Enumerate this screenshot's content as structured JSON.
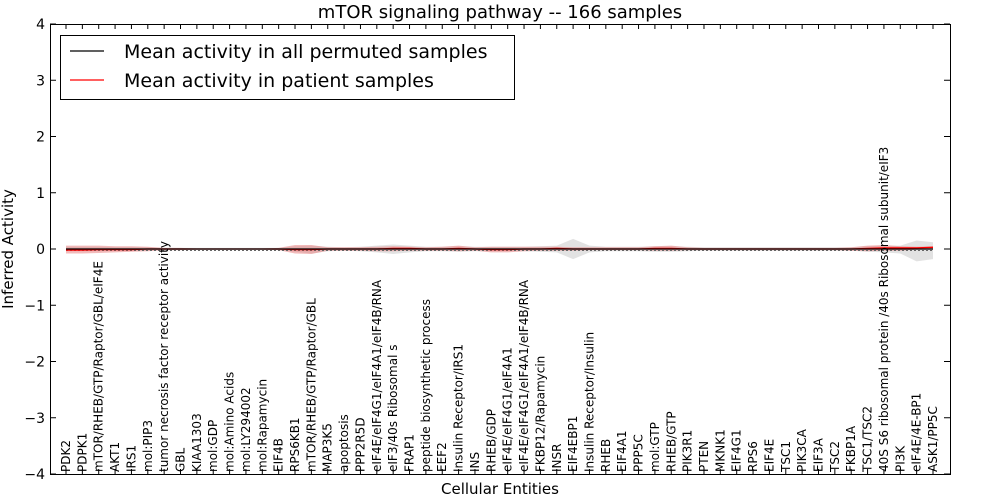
{
  "chart_data": {
    "type": "line",
    "title": "mTOR signaling pathway -- 166 samples",
    "xlabel": "Cellular Entities",
    "ylabel": "Inferred Activity",
    "ylim": [
      -4,
      4
    ],
    "yticks": [
      -4,
      -3,
      -2,
      -1,
      0,
      1,
      2,
      3,
      4
    ],
    "ytick_labels": [
      "−4",
      "−3",
      "−2",
      "−1",
      "0",
      "1",
      "2",
      "3",
      "4"
    ],
    "grid": false,
    "legend_position": "top-left",
    "colors": {
      "permuted": "#000000",
      "patient": "#ff0000",
      "permuted_band": "#bfbfbf",
      "patient_band": "#e87878"
    },
    "categories": [
      "PDK2",
      "PDPK1",
      "mTOR/RHEB/GTP/Raptor/GBL/eIF4E",
      "AKT1",
      "IRS1",
      "mol:PIP3",
      "tumor necrosis factor receptor activity",
      "GBL",
      "KIAA1303",
      "mol:GDP",
      "mol:Amino Acids",
      "mol:LY294002",
      "mol:Rapamycin",
      "EIF4B",
      "RPS6KB1",
      "mTOR/RHEB/GTP/Raptor/GBL",
      "MAP3K5",
      "apoptosis",
      "PPP2R5D",
      "eIF4E/eIF4G1/eIF4A1/eIF4B/RNA",
      "eIF3/40s Ribosomal s",
      "FRAP1",
      "peptide biosynthetic process",
      "EEF2",
      "Insulin Receptor/IRS1",
      "INS",
      "RHEB/GDP",
      "eIF4E/eIF4G1/eIF4A1",
      "eIF4E/eIF4G1/eIF4A1/eIF4B/RNA",
      "FKBP12/Rapamycin",
      "INSR",
      "EIF4EBP1",
      "Insulin Receptor/Insulin",
      "RHEB",
      "EIF4A1",
      "PPP5C",
      "mol:GTP",
      "RHEB/GTP",
      "PIK3R1",
      "PTEN",
      "MKNK1",
      "EIF4G1",
      "RPS6",
      "EIF4E",
      "TSC1",
      "PIK3CA",
      "EIF3A",
      "TSC2",
      "FKBP1A",
      "TSC1/TSC2",
      "40S S6 ribosomal protein /40s Ribosomal subunit/eIF3",
      "PI3K",
      "eIF4E/4E-BP1",
      "ASK1/PP5C"
    ],
    "series": [
      {
        "name": "Mean activity in all permuted samples",
        "values": [
          0.0,
          0.0,
          0.0,
          0.0,
          0.0,
          0.0,
          0.0,
          0.0,
          0.0,
          0.0,
          0.0,
          0.0,
          0.0,
          0.0,
          0.0,
          0.0,
          0.0,
          0.0,
          0.0,
          0.0,
          0.0,
          0.0,
          0.0,
          0.0,
          0.0,
          0.0,
          0.0,
          0.0,
          0.0,
          0.0,
          0.0,
          0.0,
          0.0,
          0.0,
          0.0,
          0.0,
          0.0,
          0.0,
          0.0,
          0.0,
          0.0,
          0.0,
          0.0,
          0.0,
          0.0,
          0.0,
          0.0,
          0.0,
          0.0,
          0.0,
          0.0,
          0.0,
          0.0,
          0.0
        ],
        "band_upper": [
          0.04,
          0.04,
          0.04,
          0.03,
          0.03,
          0.03,
          0.02,
          0.02,
          0.02,
          0.02,
          0.02,
          0.02,
          0.02,
          0.02,
          0.05,
          0.06,
          0.04,
          0.03,
          0.04,
          0.06,
          0.08,
          0.06,
          0.04,
          0.04,
          0.05,
          0.04,
          0.04,
          0.04,
          0.04,
          0.05,
          0.06,
          0.18,
          0.06,
          0.04,
          0.04,
          0.04,
          0.05,
          0.05,
          0.04,
          0.03,
          0.03,
          0.03,
          0.03,
          0.03,
          0.03,
          0.03,
          0.03,
          0.03,
          0.03,
          0.05,
          0.06,
          0.06,
          0.15,
          0.12
        ],
        "band_lower": [
          -0.04,
          -0.04,
          -0.04,
          -0.03,
          -0.03,
          -0.03,
          -0.02,
          -0.02,
          -0.02,
          -0.02,
          -0.02,
          -0.02,
          -0.02,
          -0.02,
          -0.05,
          -0.08,
          -0.04,
          -0.03,
          -0.04,
          -0.06,
          -0.09,
          -0.06,
          -0.04,
          -0.04,
          -0.05,
          -0.04,
          -0.04,
          -0.04,
          -0.04,
          -0.05,
          -0.06,
          -0.18,
          -0.06,
          -0.04,
          -0.04,
          -0.04,
          -0.05,
          -0.05,
          -0.04,
          -0.03,
          -0.03,
          -0.03,
          -0.03,
          -0.03,
          -0.03,
          -0.03,
          -0.03,
          -0.03,
          -0.03,
          -0.05,
          -0.06,
          -0.08,
          -0.22,
          -0.18
        ]
      },
      {
        "name": "Mean activity in patient samples",
        "values": [
          -0.02,
          -0.02,
          -0.01,
          -0.01,
          -0.01,
          0.0,
          0.0,
          0.0,
          0.0,
          0.0,
          0.0,
          0.0,
          0.0,
          0.0,
          -0.01,
          -0.01,
          0.0,
          0.0,
          0.0,
          0.0,
          0.01,
          0.01,
          0.0,
          0.0,
          0.01,
          0.0,
          -0.01,
          -0.01,
          0.0,
          0.0,
          0.01,
          0.0,
          0.0,
          0.0,
          0.0,
          0.0,
          0.01,
          0.01,
          0.0,
          0.0,
          0.0,
          0.0,
          0.0,
          0.0,
          0.0,
          0.0,
          0.0,
          0.0,
          0.0,
          0.01,
          0.02,
          0.02,
          0.02,
          0.03
        ],
        "band_upper": [
          0.06,
          0.06,
          0.06,
          0.05,
          0.05,
          0.04,
          0.02,
          0.02,
          0.01,
          0.01,
          0.01,
          0.01,
          0.01,
          0.02,
          0.07,
          0.07,
          0.03,
          0.03,
          0.03,
          0.04,
          0.05,
          0.04,
          0.03,
          0.04,
          0.06,
          0.03,
          0.04,
          0.04,
          0.04,
          0.04,
          0.04,
          0.03,
          0.03,
          0.03,
          0.03,
          0.03,
          0.05,
          0.06,
          0.03,
          0.02,
          0.02,
          0.02,
          0.02,
          0.02,
          0.02,
          0.02,
          0.02,
          0.02,
          0.03,
          0.06,
          0.07,
          0.05,
          0.04,
          0.05
        ],
        "band_lower": [
          -0.08,
          -0.08,
          -0.07,
          -0.06,
          -0.05,
          -0.04,
          -0.02,
          -0.02,
          -0.01,
          -0.01,
          -0.01,
          -0.01,
          -0.01,
          -0.02,
          -0.08,
          -0.09,
          -0.03,
          -0.03,
          -0.03,
          -0.04,
          -0.04,
          -0.03,
          -0.03,
          -0.03,
          -0.04,
          -0.03,
          -0.06,
          -0.06,
          -0.04,
          -0.03,
          -0.03,
          -0.03,
          -0.02,
          -0.02,
          -0.02,
          -0.02,
          -0.03,
          -0.03,
          -0.02,
          -0.02,
          -0.02,
          -0.02,
          -0.02,
          -0.02,
          -0.02,
          -0.02,
          -0.02,
          -0.02,
          -0.03,
          -0.04,
          -0.03,
          -0.03,
          -0.01,
          0.0
        ]
      }
    ]
  }
}
